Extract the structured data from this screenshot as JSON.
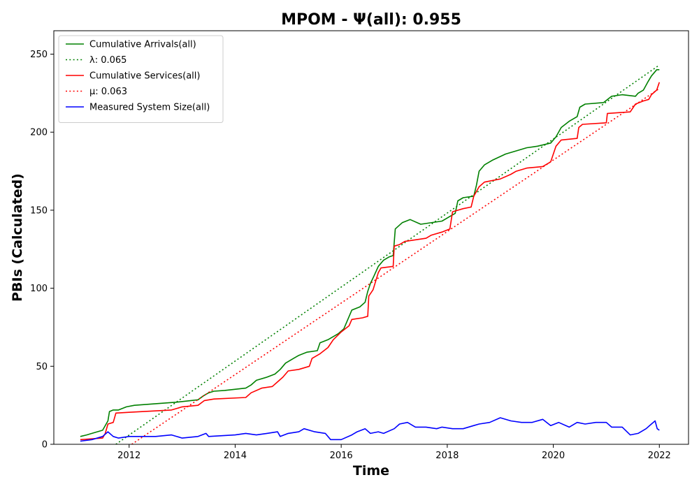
{
  "chart_data": {
    "type": "line",
    "title": "MPOM -  Ψ(all): 0.955",
    "xlabel": "Time",
    "ylabel": "PBIs (Calculated)",
    "x_unit": "year",
    "xlim": [
      2010.58,
      2022.55
    ],
    "ylim": [
      0,
      265
    ],
    "xticks": [
      2012,
      2014,
      2016,
      2018,
      2020,
      2022
    ],
    "yticks": [
      0,
      50,
      100,
      150,
      200,
      250
    ],
    "grid": false,
    "legend_position": "top-left",
    "series": [
      {
        "name": "Cumulative Arrivals(all)",
        "color": "#008000",
        "style": "solid",
        "points": [
          [
            2011.08,
            5
          ],
          [
            2011.2,
            6
          ],
          [
            2011.5,
            9
          ],
          [
            2011.6,
            15
          ],
          [
            2011.63,
            21
          ],
          [
            2011.7,
            22
          ],
          [
            2011.8,
            22
          ],
          [
            2011.95,
            24
          ],
          [
            2012.1,
            25
          ],
          [
            2012.5,
            26
          ],
          [
            2012.9,
            27
          ],
          [
            2013.3,
            28.5
          ],
          [
            2013.4,
            31
          ],
          [
            2013.5,
            33
          ],
          [
            2013.6,
            34
          ],
          [
            2013.8,
            34.5
          ],
          [
            2014.2,
            36
          ],
          [
            2014.3,
            38
          ],
          [
            2014.4,
            41
          ],
          [
            2014.6,
            43
          ],
          [
            2014.75,
            45
          ],
          [
            2014.85,
            48
          ],
          [
            2014.95,
            52
          ],
          [
            2015.1,
            55
          ],
          [
            2015.2,
            57
          ],
          [
            2015.35,
            59
          ],
          [
            2015.55,
            60
          ],
          [
            2015.6,
            65
          ],
          [
            2015.75,
            67
          ],
          [
            2015.95,
            71
          ],
          [
            2016.05,
            74
          ],
          [
            2016.1,
            78
          ],
          [
            2016.2,
            86
          ],
          [
            2016.35,
            88
          ],
          [
            2016.45,
            91
          ],
          [
            2016.5,
            98
          ],
          [
            2016.55,
            103
          ],
          [
            2016.62,
            108
          ],
          [
            2016.7,
            114
          ],
          [
            2016.8,
            118
          ],
          [
            2016.9,
            120
          ],
          [
            2016.98,
            121
          ],
          [
            2017.02,
            138
          ],
          [
            2017.15,
            142
          ],
          [
            2017.3,
            144
          ],
          [
            2017.5,
            141
          ],
          [
            2017.9,
            143
          ],
          [
            2018.05,
            146
          ],
          [
            2018.15,
            148
          ],
          [
            2018.2,
            156
          ],
          [
            2018.3,
            158
          ],
          [
            2018.5,
            159
          ],
          [
            2018.55,
            166
          ],
          [
            2018.6,
            175
          ],
          [
            2018.7,
            179
          ],
          [
            2018.85,
            182
          ],
          [
            2019.1,
            186
          ],
          [
            2019.3,
            188
          ],
          [
            2019.5,
            190
          ],
          [
            2019.7,
            191
          ],
          [
            2019.95,
            193
          ],
          [
            2020.05,
            197
          ],
          [
            2020.15,
            203
          ],
          [
            2020.3,
            207
          ],
          [
            2020.45,
            210
          ],
          [
            2020.5,
            216
          ],
          [
            2020.6,
            218
          ],
          [
            2020.95,
            219
          ],
          [
            2021.1,
            223
          ],
          [
            2021.3,
            224
          ],
          [
            2021.55,
            223
          ],
          [
            2021.6,
            225
          ],
          [
            2021.7,
            227
          ],
          [
            2021.78,
            232
          ],
          [
            2021.85,
            236
          ],
          [
            2021.95,
            240
          ],
          [
            2022.0,
            240
          ]
        ]
      },
      {
        "name": "λ: 0.065",
        "color": "#008000",
        "style": "dotted",
        "points": [
          [
            2011.75,
            0
          ],
          [
            2022.0,
            243
          ]
        ]
      },
      {
        "name": "Cumulative Services(all)",
        "color": "#ff0000",
        "style": "solid",
        "points": [
          [
            2011.08,
            3
          ],
          [
            2011.5,
            4
          ],
          [
            2011.55,
            7
          ],
          [
            2011.6,
            13
          ],
          [
            2011.7,
            14
          ],
          [
            2011.75,
            20
          ],
          [
            2012.0,
            20.5
          ],
          [
            2012.8,
            22
          ],
          [
            2013.0,
            24
          ],
          [
            2013.3,
            25
          ],
          [
            2013.42,
            28
          ],
          [
            2013.6,
            29
          ],
          [
            2014.2,
            30
          ],
          [
            2014.3,
            33
          ],
          [
            2014.5,
            36
          ],
          [
            2014.7,
            37
          ],
          [
            2014.8,
            40
          ],
          [
            2014.9,
            43
          ],
          [
            2015.0,
            47
          ],
          [
            2015.2,
            48
          ],
          [
            2015.4,
            50
          ],
          [
            2015.45,
            55
          ],
          [
            2015.6,
            58
          ],
          [
            2015.75,
            62
          ],
          [
            2015.85,
            67
          ],
          [
            2016.0,
            72
          ],
          [
            2016.15,
            76
          ],
          [
            2016.2,
            80
          ],
          [
            2016.4,
            81
          ],
          [
            2016.5,
            82
          ],
          [
            2016.52,
            95
          ],
          [
            2016.6,
            99
          ],
          [
            2016.7,
            110
          ],
          [
            2016.75,
            113
          ],
          [
            2016.98,
            114
          ],
          [
            2017.0,
            127
          ],
          [
            2017.1,
            128
          ],
          [
            2017.2,
            130
          ],
          [
            2017.6,
            132
          ],
          [
            2017.7,
            134
          ],
          [
            2017.9,
            136
          ],
          [
            2018.05,
            138
          ],
          [
            2018.1,
            149
          ],
          [
            2018.3,
            151
          ],
          [
            2018.45,
            152
          ],
          [
            2018.5,
            159
          ],
          [
            2018.6,
            165
          ],
          [
            2018.7,
            168
          ],
          [
            2019.0,
            170
          ],
          [
            2019.2,
            173
          ],
          [
            2019.3,
            175
          ],
          [
            2019.5,
            177
          ],
          [
            2019.8,
            178
          ],
          [
            2019.95,
            181
          ],
          [
            2020.0,
            186
          ],
          [
            2020.05,
            191
          ],
          [
            2020.15,
            195
          ],
          [
            2020.45,
            196
          ],
          [
            2020.48,
            203
          ],
          [
            2020.55,
            205
          ],
          [
            2021.0,
            206
          ],
          [
            2021.02,
            212
          ],
          [
            2021.45,
            213
          ],
          [
            2021.55,
            218
          ],
          [
            2021.7,
            220
          ],
          [
            2021.8,
            221
          ],
          [
            2021.85,
            224
          ],
          [
            2021.95,
            227
          ],
          [
            2022.0,
            232
          ]
        ]
      },
      {
        "name": "μ: 0.063",
        "color": "#ff0000",
        "style": "dotted",
        "points": [
          [
            2012.05,
            0
          ],
          [
            2022.0,
            228
          ]
        ]
      },
      {
        "name": "Measured System Size(all)",
        "color": "#0000ff",
        "style": "solid",
        "points": [
          [
            2011.08,
            2
          ],
          [
            2011.3,
            3
          ],
          [
            2011.5,
            5
          ],
          [
            2011.6,
            8
          ],
          [
            2011.7,
            5
          ],
          [
            2011.8,
            4
          ],
          [
            2012.0,
            5
          ],
          [
            2012.5,
            5
          ],
          [
            2012.8,
            6
          ],
          [
            2013.0,
            4
          ],
          [
            2013.3,
            5
          ],
          [
            2013.45,
            7
          ],
          [
            2013.5,
            5
          ],
          [
            2014.0,
            6
          ],
          [
            2014.2,
            7
          ],
          [
            2014.4,
            6
          ],
          [
            2014.6,
            7
          ],
          [
            2014.8,
            8
          ],
          [
            2014.85,
            5
          ],
          [
            2015.0,
            7
          ],
          [
            2015.2,
            8
          ],
          [
            2015.3,
            10
          ],
          [
            2015.5,
            8
          ],
          [
            2015.7,
            7
          ],
          [
            2015.8,
            3
          ],
          [
            2016.0,
            3
          ],
          [
            2016.2,
            6
          ],
          [
            2016.3,
            8
          ],
          [
            2016.45,
            10
          ],
          [
            2016.55,
            7
          ],
          [
            2016.7,
            8
          ],
          [
            2016.8,
            7
          ],
          [
            2017.0,
            10
          ],
          [
            2017.1,
            13
          ],
          [
            2017.25,
            14
          ],
          [
            2017.4,
            11
          ],
          [
            2017.6,
            11
          ],
          [
            2017.8,
            10
          ],
          [
            2017.9,
            11
          ],
          [
            2018.1,
            10
          ],
          [
            2018.3,
            10
          ],
          [
            2018.5,
            12
          ],
          [
            2018.6,
            13
          ],
          [
            2018.8,
            14
          ],
          [
            2019.0,
            17
          ],
          [
            2019.2,
            15
          ],
          [
            2019.4,
            14
          ],
          [
            2019.6,
            14
          ],
          [
            2019.8,
            16
          ],
          [
            2019.95,
            12
          ],
          [
            2020.1,
            14
          ],
          [
            2020.3,
            11
          ],
          [
            2020.45,
            14
          ],
          [
            2020.6,
            13
          ],
          [
            2020.8,
            14
          ],
          [
            2021.0,
            14
          ],
          [
            2021.1,
            11
          ],
          [
            2021.3,
            11
          ],
          [
            2021.45,
            6
          ],
          [
            2021.6,
            7
          ],
          [
            2021.75,
            10
          ],
          [
            2021.85,
            13
          ],
          [
            2021.92,
            15
          ],
          [
            2021.96,
            10
          ],
          [
            2022.0,
            9
          ]
        ]
      }
    ]
  }
}
